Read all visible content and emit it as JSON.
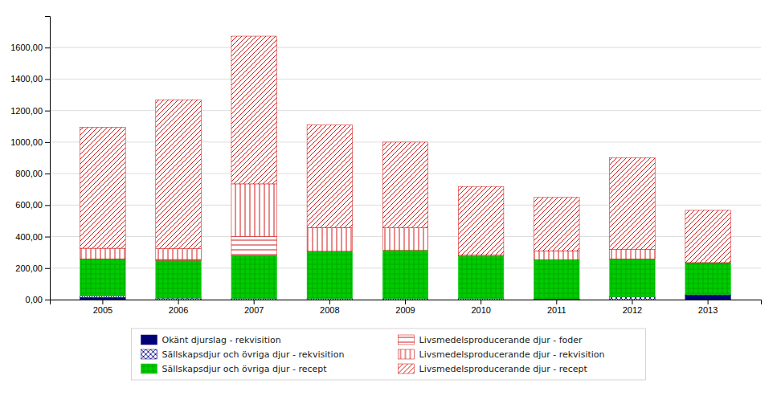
{
  "chart_data": {
    "type": "bar",
    "stacked": true,
    "grid": true,
    "legend": "bottom",
    "categories": [
      "2005",
      "2006",
      "2007",
      "2008",
      "2009",
      "2010",
      "2011",
      "2012",
      "2013"
    ],
    "series": [
      {
        "name": "Okänt djurslag - rekvisition",
        "color": "#000080",
        "values": [
          14.0,
          0.02,
          0.0,
          0.0,
          0.0,
          0.0,
          1.03,
          0.0,
          29.23
        ]
      },
      {
        "name": "Sällskapsdjur och övriga djur - rekvisition",
        "color": "#000080",
        "values": [
          9.0,
          9.64,
          8.11,
          7.03,
          6.68,
          6.82,
          3.58,
          18.47,
          2.94
        ]
      },
      {
        "name": "Sällskapsdjur och övriga djur - recept",
        "color": "#00cc00",
        "values": [
          236.0,
          239.02,
          271.59,
          299.83,
          306.25,
          269.26,
          249.36,
          240.08,
          202.68
        ]
      },
      {
        "name": "Livsmedelsproducerande djur  - foder",
        "color": "#cc0000",
        "values": [
          0.0,
          6.0,
          122.0,
          0.0,
          0.0,
          0.0,
          0.0,
          0.0,
          0.0
        ]
      },
      {
        "name": "Livsmedelsproducerande djur - rekvisition",
        "color": "#cc0000",
        "values": [
          67.0,
          68.39,
          333.0,
          150.3,
          142.85,
          8.02,
          55.8,
          59.54,
          0.04
        ]
      },
      {
        "name": "Livsmedelsproducerande djur - recept",
        "color": "#cc0000",
        "values": [
          768.0,
          945.93,
          937.65,
          650.7,
          544.0,
          434.05,
          338.84,
          583.16,
          331.87
        ]
      }
    ],
    "ylim": [
      0,
      1800
    ],
    "yticks": [
      {
        "value": 0,
        "label": "0,00"
      },
      {
        "value": 200,
        "label": "200,00"
      },
      {
        "value": 400,
        "label": "400,00"
      },
      {
        "value": 600,
        "label": "600,00"
      },
      {
        "value": 800,
        "label": "800,00"
      },
      {
        "value": 1000,
        "label": "1000,00"
      },
      {
        "value": 1200,
        "label": "1200,00"
      },
      {
        "value": 1400,
        "label": "1400,00"
      },
      {
        "value": 1600,
        "label": "1600,00"
      }
    ]
  }
}
